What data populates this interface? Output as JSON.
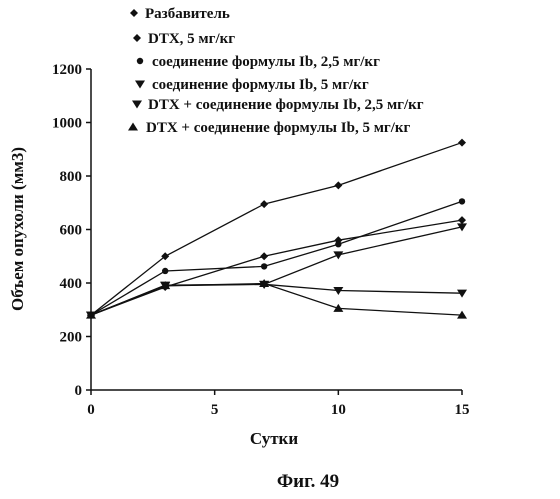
{
  "chart_data": {
    "type": "line",
    "xlabel": "Сутки",
    "ylabel": "Объем опухоли (мм3)",
    "caption": "Фиг. 49",
    "xlim": [
      0,
      15
    ],
    "ylim": [
      0,
      1200
    ],
    "xticks": [
      0,
      5,
      10,
      15
    ],
    "yticks": [
      0,
      200,
      400,
      600,
      800,
      1000,
      1200
    ],
    "x": [
      0,
      3,
      7,
      10,
      15
    ],
    "legend_position": "top",
    "series": [
      {
        "name": "Разбавитель",
        "marker": "diamond",
        "values": [
          280,
          500,
          695,
          765,
          925
        ]
      },
      {
        "name": "DTX, 5 мг/кг",
        "marker": "diamond",
        "values": [
          280,
          385,
          500,
          560,
          635
        ]
      },
      {
        "name": "соединение формулы Ib, 2,5 мг/кг",
        "marker": "circle",
        "values": [
          280,
          445,
          462,
          545,
          705
        ]
      },
      {
        "name": "соединение формулы Ib, 5 мг/кг",
        "marker": "triangle-down",
        "values": [
          280,
          392,
          395,
          505,
          610
        ]
      },
      {
        "name": "DTX + соединение формулы Ib, 2,5 мг/кг",
        "marker": "triangle-down",
        "values": [
          280,
          390,
          395,
          372,
          362
        ]
      },
      {
        "name": "DTX + соединение формулы Ib, 5 мг/кг",
        "marker": "triangle-up",
        "values": [
          280,
          390,
          398,
          305,
          280
        ]
      }
    ]
  }
}
